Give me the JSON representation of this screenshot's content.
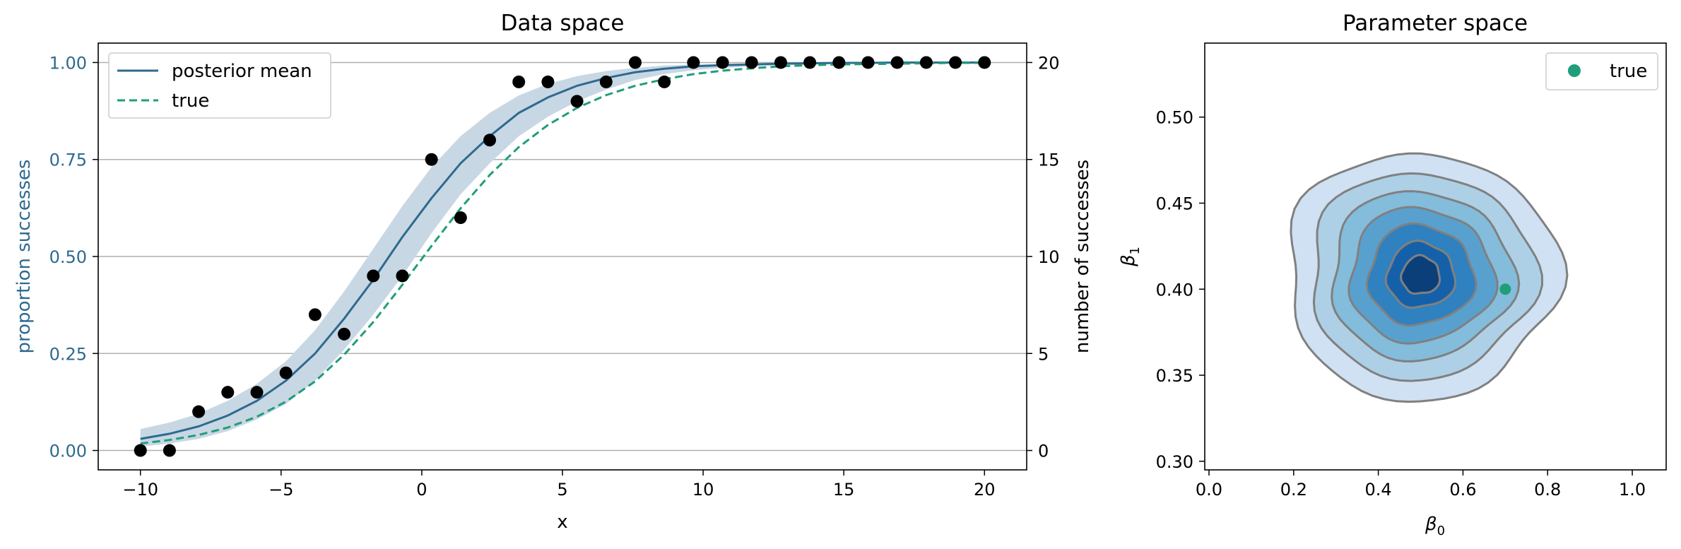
{
  "chart_data": [
    {
      "type": "line",
      "title": "Data space",
      "xlabel": "x",
      "ylabel": "proportion successes",
      "ylabel_right": "number of successes",
      "xlim": [
        -11.5,
        21.5
      ],
      "ylim": [
        -0.05,
        1.05
      ],
      "ylim_right": [
        -1,
        21
      ],
      "xticks": [
        -10,
        -5,
        0,
        5,
        10,
        15,
        20
      ],
      "yticks": [
        "0.00",
        "0.25",
        "0.50",
        "0.75",
        "1.00"
      ],
      "yticks_right": [
        0,
        5,
        10,
        15,
        20
      ],
      "grid": "horizontal",
      "legend_position": "top-left",
      "x": [
        -10,
        -8.966,
        -7.931,
        -6.897,
        -5.862,
        -4.828,
        -3.793,
        -2.759,
        -1.724,
        -0.69,
        0.345,
        1.379,
        2.414,
        3.448,
        4.483,
        5.517,
        6.552,
        7.586,
        8.621,
        9.655,
        10.69,
        11.724,
        12.759,
        13.793,
        14.828,
        15.862,
        16.897,
        17.931,
        18.966,
        20
      ],
      "series": [
        {
          "name": "posterior mean",
          "kind": "line",
          "color": "#2e6a8e",
          "values": [
            0.03,
            0.043,
            0.062,
            0.09,
            0.128,
            0.18,
            0.25,
            0.34,
            0.44,
            0.55,
            0.65,
            0.74,
            0.81,
            0.87,
            0.91,
            0.94,
            0.96,
            0.975,
            0.984,
            0.99,
            0.993,
            0.995,
            0.997,
            0.998,
            0.999,
            0.999,
            1.0,
            1.0,
            1.0,
            1.0
          ]
        },
        {
          "name": "true",
          "kind": "dashed",
          "color": "#1f9e7a",
          "values": [
            0.018,
            0.027,
            0.04,
            0.059,
            0.087,
            0.126,
            0.178,
            0.247,
            0.331,
            0.427,
            0.527,
            0.624,
            0.71,
            0.782,
            0.839,
            0.883,
            0.916,
            0.94,
            0.957,
            0.97,
            0.979,
            0.985,
            0.99,
            0.993,
            0.995,
            0.996,
            0.997,
            0.998,
            0.999,
            0.999
          ]
        },
        {
          "kind": "band",
          "color": "#c8d7e4",
          "lower": [
            0.01,
            0.018,
            0.03,
            0.05,
            0.08,
            0.12,
            0.18,
            0.26,
            0.35,
            0.45,
            0.56,
            0.66,
            0.74,
            0.81,
            0.86,
            0.9,
            0.93,
            0.955,
            0.97,
            0.98,
            0.986,
            0.99,
            0.993,
            0.995,
            0.996,
            0.997,
            0.998,
            0.998,
            0.999,
            0.999
          ],
          "upper": [
            0.055,
            0.072,
            0.095,
            0.128,
            0.172,
            0.23,
            0.31,
            0.41,
            0.52,
            0.63,
            0.73,
            0.81,
            0.87,
            0.915,
            0.945,
            0.965,
            0.978,
            0.986,
            0.992,
            0.995,
            0.997,
            0.998,
            0.999,
            0.999,
            1.0,
            1.0,
            1.0,
            1.0,
            1.0,
            1.0
          ]
        },
        {
          "kind": "points",
          "color": "#000000",
          "values": [
            0.0,
            0.0,
            0.1,
            0.15,
            0.15,
            0.2,
            0.35,
            0.3,
            0.45,
            0.45,
            0.75,
            0.6,
            0.8,
            0.95,
            0.95,
            0.9,
            0.95,
            1.0,
            0.95,
            1.0,
            1.0,
            1.0,
            1.0,
            1.0,
            1.0,
            1.0,
            1.0,
            1.0,
            1.0,
            1.0
          ]
        }
      ]
    },
    {
      "type": "contour",
      "title": "Parameter space",
      "xlabel_base": "β",
      "xlabel_sub": "0",
      "ylabel_base": "β",
      "ylabel_sub": "1",
      "xlim": [
        -0.01,
        1.08
      ],
      "ylim": [
        0.295,
        0.543
      ],
      "xticks": [
        "0.0",
        "0.2",
        "0.4",
        "0.6",
        "0.8",
        "1.0"
      ],
      "yticks": [
        "0.30",
        "0.35",
        "0.40",
        "0.45",
        "0.50"
      ],
      "legend_position": "top-right",
      "center": [
        0.5,
        0.408
      ],
      "levels": [
        {
          "rx": 0.32,
          "ry": 0.072,
          "fill": "#cfe1f2"
        },
        {
          "rx": 0.265,
          "ry": 0.06,
          "fill": "#add0e6"
        },
        {
          "rx": 0.215,
          "ry": 0.049,
          "fill": "#84bcdb"
        },
        {
          "rx": 0.17,
          "ry": 0.039,
          "fill": "#58a1cf"
        },
        {
          "rx": 0.125,
          "ry": 0.029,
          "fill": "#2f81bf"
        },
        {
          "rx": 0.08,
          "ry": 0.019,
          "fill": "#1561a9"
        },
        {
          "rx": 0.045,
          "ry": 0.011,
          "fill": "#0a3f7a"
        }
      ],
      "series": [
        {
          "name": "true",
          "kind": "point",
          "color": "#1f9e7a",
          "x": 0.7,
          "y": 0.4
        }
      ]
    }
  ]
}
